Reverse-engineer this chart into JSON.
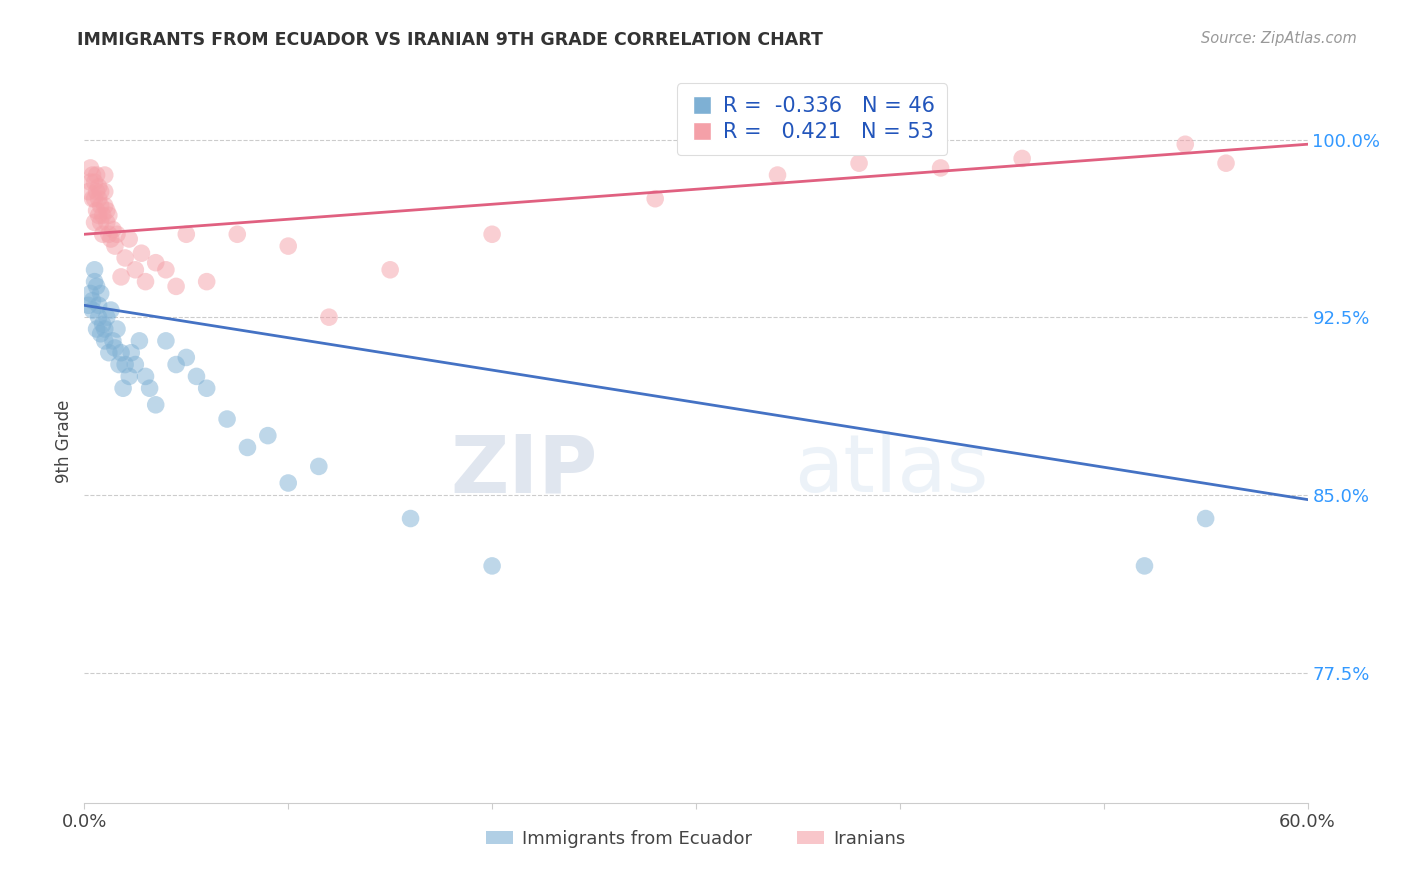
{
  "title": "IMMIGRANTS FROM ECUADOR VS IRANIAN 9TH GRADE CORRELATION CHART",
  "source": "Source: ZipAtlas.com",
  "ylabel": "9th Grade",
  "ytick_labels": [
    "77.5%",
    "85.0%",
    "92.5%",
    "100.0%"
  ],
  "ytick_values": [
    0.775,
    0.85,
    0.925,
    1.0
  ],
  "xlim": [
    0.0,
    0.6
  ],
  "ylim": [
    0.72,
    1.025
  ],
  "blue_color": "#7EB0D4",
  "pink_color": "#F4A0A8",
  "blue_line_color": "#4472C4",
  "pink_line_color": "#E06080",
  "legend_r_blue": "-0.336",
  "legend_n_blue": "46",
  "legend_r_pink": "0.421",
  "legend_n_pink": "53",
  "legend_label_blue": "Immigrants from Ecuador",
  "legend_label_pink": "Iranians",
  "watermark_zip": "ZIP",
  "watermark_atlas": "atlas",
  "blue_scatter_x": [
    0.002,
    0.003,
    0.004,
    0.004,
    0.005,
    0.005,
    0.006,
    0.006,
    0.007,
    0.007,
    0.008,
    0.008,
    0.009,
    0.01,
    0.01,
    0.011,
    0.012,
    0.013,
    0.014,
    0.015,
    0.016,
    0.017,
    0.018,
    0.019,
    0.02,
    0.022,
    0.023,
    0.025,
    0.027,
    0.03,
    0.032,
    0.035,
    0.04,
    0.045,
    0.05,
    0.055,
    0.06,
    0.07,
    0.08,
    0.09,
    0.1,
    0.115,
    0.16,
    0.2,
    0.52,
    0.55
  ],
  "blue_scatter_y": [
    0.93,
    0.935,
    0.928,
    0.932,
    0.94,
    0.945,
    0.92,
    0.938,
    0.925,
    0.93,
    0.918,
    0.935,
    0.922,
    0.915,
    0.92,
    0.925,
    0.91,
    0.928,
    0.915,
    0.912,
    0.92,
    0.905,
    0.91,
    0.895,
    0.905,
    0.9,
    0.91,
    0.905,
    0.915,
    0.9,
    0.895,
    0.888,
    0.915,
    0.905,
    0.908,
    0.9,
    0.895,
    0.882,
    0.87,
    0.875,
    0.855,
    0.862,
    0.84,
    0.82,
    0.82,
    0.84
  ],
  "pink_scatter_x": [
    0.002,
    0.003,
    0.003,
    0.004,
    0.004,
    0.005,
    0.005,
    0.005,
    0.006,
    0.006,
    0.006,
    0.007,
    0.007,
    0.007,
    0.008,
    0.008,
    0.008,
    0.009,
    0.009,
    0.01,
    0.01,
    0.01,
    0.011,
    0.011,
    0.012,
    0.012,
    0.013,
    0.014,
    0.015,
    0.016,
    0.018,
    0.02,
    0.022,
    0.025,
    0.028,
    0.03,
    0.035,
    0.04,
    0.045,
    0.05,
    0.06,
    0.075,
    0.1,
    0.12,
    0.15,
    0.2,
    0.28,
    0.34,
    0.38,
    0.42,
    0.46,
    0.54,
    0.56
  ],
  "pink_scatter_y": [
    0.978,
    0.982,
    0.988,
    0.975,
    0.985,
    0.965,
    0.975,
    0.982,
    0.97,
    0.978,
    0.985,
    0.968,
    0.975,
    0.98,
    0.965,
    0.972,
    0.978,
    0.96,
    0.968,
    0.972,
    0.978,
    0.985,
    0.965,
    0.97,
    0.96,
    0.968,
    0.958,
    0.962,
    0.955,
    0.96,
    0.942,
    0.95,
    0.958,
    0.945,
    0.952,
    0.94,
    0.948,
    0.945,
    0.938,
    0.96,
    0.94,
    0.96,
    0.955,
    0.925,
    0.945,
    0.96,
    0.975,
    0.985,
    0.99,
    0.988,
    0.992,
    0.998,
    0.99
  ],
  "blue_trendline_x": [
    0.0,
    0.6
  ],
  "blue_trendline_y": [
    0.93,
    0.848
  ],
  "pink_trendline_x": [
    0.0,
    0.6
  ],
  "pink_trendline_y": [
    0.96,
    0.998
  ]
}
